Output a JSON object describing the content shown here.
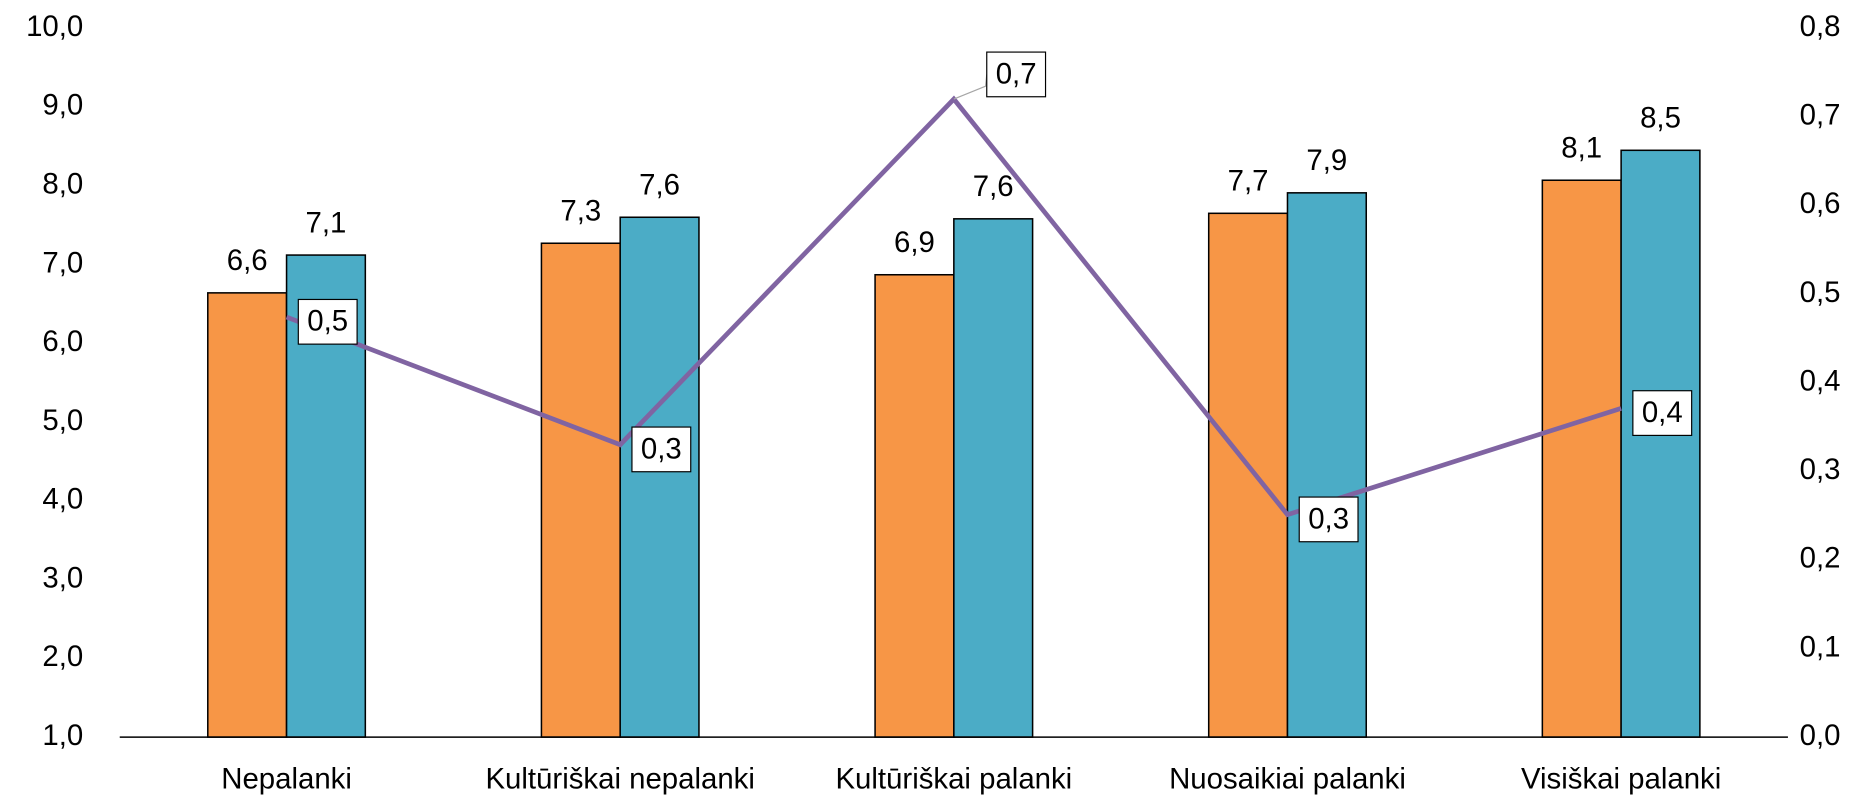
{
  "chart_data": {
    "type": "bar",
    "categories": [
      "Nepalanki",
      "Kultūriškai nepalanki",
      "Kultūriškai palanki",
      "Nuosaikiai palanki",
      "Visiškai palanki"
    ],
    "series": [
      {
        "color": "#f79646",
        "values": [
          6.64,
          7.27,
          6.87,
          7.65,
          8.07
        ],
        "value_labels": [
          "6,6",
          "7,3",
          "6,9",
          "7,7",
          "8,1"
        ]
      },
      {
        "color": "#4bacc6",
        "values": [
          7.12,
          7.6,
          7.58,
          7.91,
          8.45
        ],
        "value_labels": [
          "7,1",
          "7,6",
          "7,6",
          "7,9",
          "8,5"
        ]
      },
      {
        "type": "line",
        "axis": "y2",
        "color": "#8064a2",
        "values": [
          0.474,
          0.33,
          0.72,
          0.251,
          0.371
        ],
        "value_labels": [
          "0,5",
          "0,3",
          "0,7",
          "0,3",
          "0,4"
        ]
      }
    ],
    "ylim": [
      1,
      10
    ],
    "yticks": [
      {
        "value": 1,
        "label": "1,0"
      },
      {
        "value": 2,
        "label": "2,0"
      },
      {
        "value": 3,
        "label": "3,0"
      },
      {
        "value": 4,
        "label": "4,0"
      },
      {
        "value": 5,
        "label": "5,0"
      },
      {
        "value": 6,
        "label": "6,0"
      },
      {
        "value": 7,
        "label": "7,0"
      },
      {
        "value": 8,
        "label": "8,0"
      },
      {
        "value": 9,
        "label": "9,0"
      },
      {
        "value": 10,
        "label": "10,0"
      }
    ],
    "y2lim": [
      0,
      0.8
    ],
    "y2ticks": [
      {
        "value": 0,
        "label": "0,0"
      },
      {
        "value": 0.1,
        "label": "0,1"
      },
      {
        "value": 0.2,
        "label": "0,2"
      },
      {
        "value": 0.3,
        "label": "0,3"
      },
      {
        "value": 0.4,
        "label": "0,4"
      },
      {
        "value": 0.5,
        "label": "0,5"
      },
      {
        "value": 0.6,
        "label": "0,6"
      },
      {
        "value": 0.7,
        "label": "0,7"
      },
      {
        "value": 0.8,
        "label": "0,8"
      }
    ],
    "grid": false
  }
}
